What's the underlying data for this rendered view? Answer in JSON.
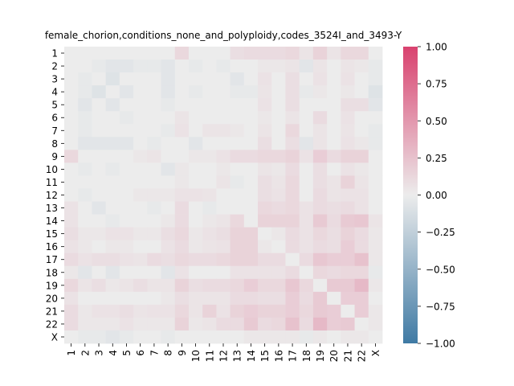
{
  "chart_data": {
    "type": "heatmap",
    "title": "female_chorion,conditions_none_and_polyploidy,codes_3524I_and_3493-Y",
    "xlabel": "",
    "ylabel": "",
    "row_labels": [
      "1",
      "2",
      "3",
      "4",
      "5",
      "6",
      "7",
      "8",
      "9",
      "10",
      "11",
      "12",
      "13",
      "14",
      "15",
      "16",
      "17",
      "18",
      "19",
      "20",
      "21",
      "22",
      "X"
    ],
    "col_labels": [
      "1",
      "2",
      "3",
      "4",
      "5",
      "6",
      "7",
      "8",
      "9",
      "10",
      "11",
      "12",
      "13",
      "14",
      "15",
      "16",
      "17",
      "18",
      "19",
      "20",
      "21",
      "22",
      "X"
    ],
    "vmin": -1.0,
    "vmax": 1.0,
    "colormap": {
      "negative": "#3f7aa4",
      "center": "#ececec",
      "positive": "#d9426f"
    },
    "colorbar_ticks": [
      "1.00",
      "0.75",
      "0.50",
      "0.25",
      "0.00",
      "−0.25",
      "−0.50",
      "−0.75",
      "−1.00"
    ],
    "colorbar_tick_values": [
      1.0,
      0.75,
      0.5,
      0.25,
      0.0,
      -0.25,
      -0.5,
      -0.75,
      -1.0
    ],
    "values": [
      [
        0.0,
        0.0,
        0.0,
        0.0,
        0.0,
        0.0,
        0.0,
        0.0,
        0.12,
        0.0,
        0.0,
        0.0,
        0.08,
        0.1,
        0.1,
        0.1,
        0.12,
        0.05,
        0.15,
        0.05,
        0.12,
        0.12,
        0.0
      ],
      [
        0.0,
        0.0,
        -0.03,
        -0.06,
        -0.06,
        -0.03,
        -0.03,
        -0.06,
        0.0,
        -0.03,
        0.0,
        -0.03,
        0.0,
        0.0,
        0.03,
        0.03,
        0.05,
        -0.06,
        0.05,
        0.0,
        0.05,
        0.03,
        -0.03
      ],
      [
        0.0,
        -0.03,
        0.0,
        -0.08,
        0.0,
        0.0,
        0.0,
        -0.06,
        0.0,
        0.0,
        0.0,
        0.0,
        -0.06,
        0.0,
        0.06,
        0.0,
        0.08,
        0.0,
        0.06,
        0.0,
        0.06,
        0.0,
        -0.03
      ],
      [
        0.0,
        -0.03,
        -0.08,
        0.0,
        -0.06,
        0.0,
        0.0,
        -0.06,
        0.0,
        -0.03,
        0.0,
        0.0,
        -0.03,
        -0.03,
        0.05,
        0.0,
        0.08,
        -0.03,
        0.03,
        0.0,
        0.03,
        0.0,
        -0.08
      ],
      [
        0.0,
        -0.06,
        0.0,
        -0.06,
        0.0,
        0.0,
        0.0,
        -0.03,
        0.0,
        0.0,
        0.0,
        0.0,
        0.0,
        0.0,
        0.06,
        0.0,
        0.08,
        0.0,
        0.0,
        0.0,
        0.08,
        0.08,
        -0.06
      ],
      [
        0.0,
        -0.03,
        0.0,
        0.0,
        -0.03,
        0.0,
        0.0,
        0.0,
        0.05,
        0.0,
        0.0,
        0.0,
        0.0,
        0.0,
        0.03,
        0.0,
        0.05,
        0.0,
        0.1,
        0.0,
        0.06,
        0.0,
        0.0
      ],
      [
        0.0,
        -0.03,
        0.0,
        0.0,
        0.0,
        0.0,
        0.0,
        -0.03,
        0.06,
        0.0,
        0.05,
        0.05,
        0.03,
        0.0,
        0.05,
        0.0,
        0.12,
        0.0,
        0.05,
        0.0,
        0.05,
        0.0,
        -0.03
      ],
      [
        0.0,
        -0.06,
        -0.06,
        -0.06,
        -0.06,
        0.0,
        -0.03,
        0.0,
        0.0,
        -0.06,
        0.0,
        0.0,
        0.0,
        0.0,
        0.08,
        0.0,
        0.08,
        -0.06,
        0.05,
        0.0,
        0.06,
        0.03,
        -0.03
      ],
      [
        0.12,
        0.0,
        0.0,
        0.0,
        0.0,
        0.03,
        0.05,
        0.0,
        0.0,
        0.03,
        0.03,
        0.06,
        0.1,
        0.1,
        0.12,
        0.12,
        0.15,
        0.06,
        0.18,
        0.1,
        0.15,
        0.15,
        0.0
      ],
      [
        0.0,
        -0.03,
        0.0,
        -0.03,
        0.0,
        0.0,
        0.0,
        -0.06,
        0.03,
        0.0,
        0.0,
        0.03,
        0.0,
        0.0,
        0.05,
        0.03,
        0.1,
        0.0,
        0.08,
        0.0,
        0.06,
        0.03,
        0.0
      ],
      [
        0.0,
        0.0,
        0.0,
        0.0,
        0.0,
        0.0,
        0.0,
        0.0,
        0.03,
        0.0,
        0.0,
        0.05,
        -0.03,
        0.0,
        0.08,
        0.05,
        0.12,
        0.0,
        0.08,
        0.05,
        0.15,
        0.05,
        0.0
      ],
      [
        0.0,
        -0.03,
        0.0,
        0.0,
        0.0,
        0.03,
        0.03,
        0.03,
        0.06,
        0.06,
        0.05,
        0.0,
        0.0,
        0.0,
        0.08,
        0.06,
        0.12,
        0.0,
        0.1,
        0.05,
        0.06,
        0.06,
        0.0
      ],
      [
        0.06,
        0.0,
        -0.06,
        0.0,
        0.0,
        0.0,
        -0.03,
        0.0,
        0.1,
        0.0,
        -0.03,
        0.0,
        0.0,
        0.0,
        0.12,
        0.1,
        0.12,
        0.06,
        0.1,
        0.08,
        0.1,
        0.06,
        0.0
      ],
      [
        0.06,
        0.0,
        0.0,
        -0.03,
        0.0,
        0.0,
        0.0,
        0.03,
        0.1,
        0.0,
        0.03,
        0.05,
        0.12,
        0.0,
        0.15,
        0.15,
        0.15,
        0.06,
        0.2,
        0.1,
        0.2,
        0.22,
        0.05
      ],
      [
        0.08,
        0.03,
        0.03,
        0.06,
        0.06,
        0.03,
        0.03,
        0.08,
        0.12,
        0.03,
        0.06,
        0.08,
        0.15,
        0.15,
        0.0,
        0.03,
        0.1,
        0.06,
        0.12,
        0.08,
        0.15,
        0.1,
        0.03
      ],
      [
        0.06,
        0.03,
        0.0,
        0.03,
        0.03,
        0.0,
        0.0,
        0.06,
        0.1,
        0.03,
        0.05,
        0.06,
        0.15,
        0.15,
        0.03,
        0.0,
        0.1,
        0.06,
        0.1,
        0.08,
        0.18,
        0.1,
        0.03
      ],
      [
        0.1,
        0.06,
        0.08,
        0.08,
        0.06,
        0.05,
        0.1,
        0.08,
        0.12,
        0.1,
        0.1,
        0.12,
        0.15,
        0.15,
        0.1,
        0.1,
        0.0,
        0.1,
        0.22,
        0.18,
        0.18,
        0.25,
        0.03
      ],
      [
        0.03,
        -0.06,
        0.0,
        -0.06,
        0.0,
        0.0,
        0.0,
        -0.06,
        0.06,
        0.0,
        0.0,
        0.0,
        0.06,
        0.06,
        0.06,
        0.06,
        0.1,
        0.0,
        0.12,
        0.1,
        0.12,
        0.12,
        -0.03
      ],
      [
        0.12,
        0.05,
        0.08,
        0.03,
        0.05,
        0.08,
        0.05,
        0.05,
        0.15,
        0.08,
        0.1,
        0.1,
        0.12,
        0.18,
        0.12,
        0.12,
        0.22,
        0.12,
        0.0,
        0.2,
        0.2,
        0.3,
        0.03
      ],
      [
        0.06,
        0.0,
        0.0,
        0.0,
        0.0,
        0.0,
        0.0,
        0.03,
        0.08,
        0.05,
        0.05,
        0.05,
        0.1,
        0.1,
        0.08,
        0.08,
        0.18,
        0.1,
        0.2,
        0.0,
        0.18,
        0.18,
        0.0
      ],
      [
        0.1,
        0.03,
        0.06,
        0.06,
        0.08,
        0.05,
        0.06,
        0.06,
        0.12,
        0.05,
        0.15,
        0.06,
        0.15,
        0.18,
        0.15,
        0.15,
        0.18,
        0.12,
        0.2,
        0.18,
        0.0,
        0.18,
        0.03
      ],
      [
        0.1,
        0.03,
        0.03,
        0.03,
        0.06,
        0.03,
        0.03,
        0.03,
        0.15,
        0.03,
        0.05,
        0.1,
        0.1,
        0.2,
        0.1,
        0.12,
        0.25,
        0.1,
        0.3,
        0.18,
        0.2,
        0.0,
        0.03
      ],
      [
        0.0,
        -0.03,
        -0.03,
        -0.06,
        -0.03,
        0.0,
        0.0,
        -0.03,
        0.0,
        0.0,
        0.0,
        0.0,
        0.0,
        0.03,
        0.03,
        0.03,
        0.03,
        -0.03,
        0.03,
        0.0,
        0.03,
        0.03,
        0.0
      ]
    ]
  }
}
